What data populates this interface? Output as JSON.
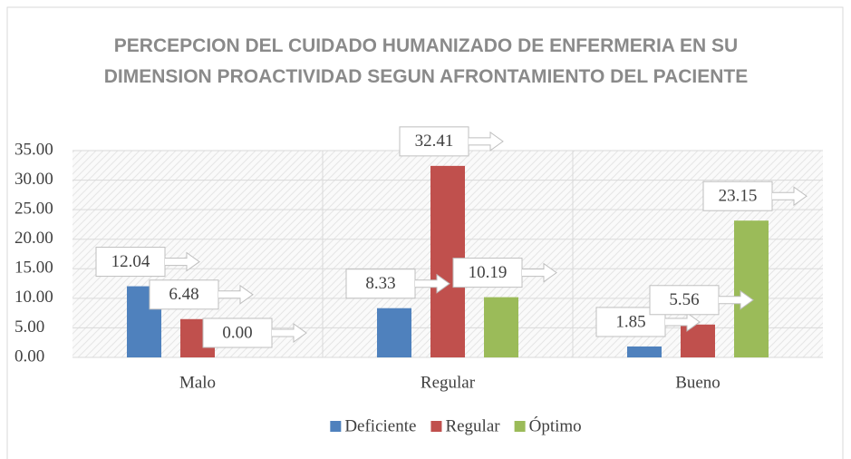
{
  "chart_data": {
    "type": "bar",
    "title": "PERCEPCION DEL CUIDADO HUMANIZADO DE ENFERMERIA EN SU DIMENSION PROACTIVIDAD SEGUN AFRONTAMIENTO DEL PACIENTE",
    "categories": [
      "Malo",
      "Regular",
      "Bueno"
    ],
    "series": [
      {
        "name": "Deficiente",
        "color": "#4f81bd",
        "values": [
          12.04,
          8.33,
          1.85
        ]
      },
      {
        "name": "Regular",
        "color": "#c0504d",
        "values": [
          6.48,
          32.41,
          5.56
        ]
      },
      {
        "name": "Óptimo",
        "color": "#9bbb59",
        "values": [
          0.0,
          10.19,
          23.15
        ],
        "value_labels": [
          "0.00",
          "10.19",
          "23.15"
        ]
      }
    ],
    "ylim": [
      0,
      35
    ],
    "yticks": [
      {
        "value": 0,
        "label": "0.00"
      },
      {
        "value": 5,
        "label": "5.00"
      },
      {
        "value": 10,
        "label": "10.00"
      },
      {
        "value": 15,
        "label": "15.00"
      },
      {
        "value": 20,
        "label": "20.00"
      },
      {
        "value": 25,
        "label": "25.00"
      },
      {
        "value": 30,
        "label": "30.00"
      },
      {
        "value": 35,
        "label": "35.00"
      }
    ],
    "grid": true,
    "legend": "bottom"
  }
}
